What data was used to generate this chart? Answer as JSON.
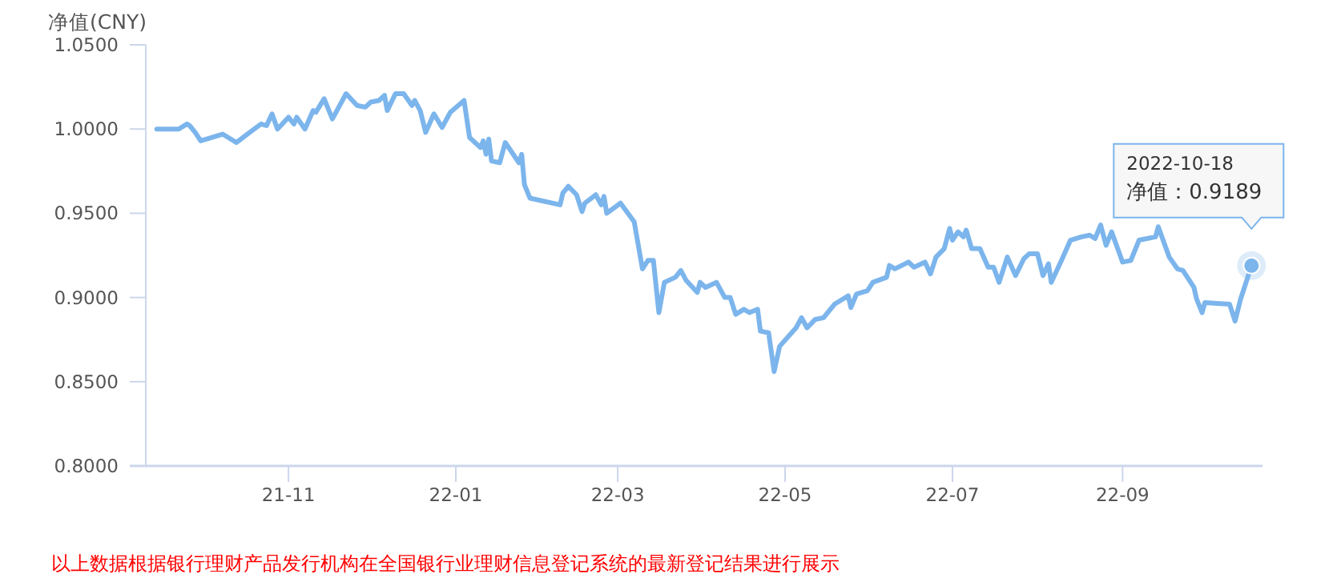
{
  "chart_data": {
    "type": "line",
    "ylabel": "净值(CNY)",
    "xlim": [
      "2021-09-10",
      "2022-10-22"
    ],
    "xticks": [
      {
        "value": "2021-11-01",
        "label": "21-11"
      },
      {
        "value": "2022-01-01",
        "label": "22-01"
      },
      {
        "value": "2022-03-01",
        "label": "22-03"
      },
      {
        "value": "2022-05-01",
        "label": "22-05"
      },
      {
        "value": "2022-07-01",
        "label": "22-07"
      },
      {
        "value": "2022-09-01",
        "label": "22-09"
      }
    ],
    "ylim": [
      0.8,
      1.05
    ],
    "yticks": [
      {
        "value": 0.8,
        "label": "0.8000"
      },
      {
        "value": 0.85,
        "label": "0.8500"
      },
      {
        "value": 0.9,
        "label": "0.9000"
      },
      {
        "value": 0.95,
        "label": "0.9500"
      },
      {
        "value": 1.0,
        "label": "1.0000"
      },
      {
        "value": 1.05,
        "label": "1.0500"
      }
    ],
    "grid": false,
    "marker": "none",
    "line_style": "solid",
    "series": [
      {
        "color": "#7cb5ec",
        "x": [
          "2021-09-14",
          "2021-09-22",
          "2021-09-25",
          "2021-09-26",
          "2021-09-28",
          "2021-09-30",
          "2021-10-08",
          "2021-10-13",
          "2021-10-17",
          "2021-10-22",
          "2021-10-24",
          "2021-10-26",
          "2021-10-28",
          "2021-11-01",
          "2021-11-03",
          "2021-11-04",
          "2021-11-07",
          "2021-11-10",
          "2021-11-11",
          "2021-11-14",
          "2021-11-17",
          "2021-11-22",
          "2021-11-26",
          "2021-11-29",
          "2021-12-01",
          "2021-12-04",
          "2021-12-06",
          "2021-12-07",
          "2021-12-10",
          "2021-12-13",
          "2021-12-16",
          "2021-12-17",
          "2021-12-19",
          "2021-12-21",
          "2021-12-24",
          "2021-12-27",
          "2021-12-29",
          "2021-12-30",
          "2022-01-04",
          "2022-01-06",
          "2022-01-10",
          "2022-01-11",
          "2022-01-12",
          "2022-01-13",
          "2022-01-14",
          "2022-01-17",
          "2022-01-19",
          "2022-01-24",
          "2022-01-25",
          "2022-01-26",
          "2022-01-28",
          "2022-02-08",
          "2022-02-09",
          "2022-02-11",
          "2022-02-14",
          "2022-02-16",
          "2022-02-17",
          "2022-02-21",
          "2022-02-23",
          "2022-02-24",
          "2022-02-25",
          "2022-03-02",
          "2022-03-07",
          "2022-03-10",
          "2022-03-12",
          "2022-03-14",
          "2022-03-16",
          "2022-03-18",
          "2022-03-22",
          "2022-03-24",
          "2022-03-26",
          "2022-03-30",
          "2022-03-31",
          "2022-04-02",
          "2022-04-06",
          "2022-04-09",
          "2022-04-11",
          "2022-04-13",
          "2022-04-16",
          "2022-04-18",
          "2022-04-21",
          "2022-04-22",
          "2022-04-25",
          "2022-04-27",
          "2022-04-29",
          "2022-05-05",
          "2022-05-07",
          "2022-05-09",
          "2022-05-12",
          "2022-05-15",
          "2022-05-19",
          "2022-05-24",
          "2022-05-25",
          "2022-05-27",
          "2022-05-31",
          "2022-06-02",
          "2022-06-07",
          "2022-06-08",
          "2022-06-10",
          "2022-06-15",
          "2022-06-17",
          "2022-06-21",
          "2022-06-23",
          "2022-06-25",
          "2022-06-28",
          "2022-06-30",
          "2022-07-01",
          "2022-07-03",
          "2022-07-05",
          "2022-07-06",
          "2022-07-08",
          "2022-07-11",
          "2022-07-14",
          "2022-07-16",
          "2022-07-18",
          "2022-07-21",
          "2022-07-24",
          "2022-07-27",
          "2022-07-29",
          "2022-08-01",
          "2022-08-03",
          "2022-08-05",
          "2022-08-06",
          "2022-08-10",
          "2022-08-13",
          "2022-08-17",
          "2022-08-20",
          "2022-08-22",
          "2022-08-24",
          "2022-08-26",
          "2022-08-28",
          "2022-09-01",
          "2022-09-04",
          "2022-09-07",
          "2022-09-13",
          "2022-09-14",
          "2022-09-18",
          "2022-09-21",
          "2022-09-23",
          "2022-09-27",
          "2022-09-28",
          "2022-09-30",
          "2022-10-01",
          "2022-10-10",
          "2022-10-12",
          "2022-10-14",
          "2022-10-18"
        ],
        "values": [
          1.0,
          1.0,
          1.003,
          1.002,
          0.998,
          0.993,
          0.997,
          0.992,
          0.997,
          1.003,
          1.002,
          1.009,
          1.0,
          1.007,
          1.003,
          1.007,
          1.0,
          1.011,
          1.01,
          1.018,
          1.006,
          1.021,
          1.014,
          1.013,
          1.016,
          1.017,
          1.02,
          1.011,
          1.021,
          1.021,
          1.014,
          1.017,
          1.011,
          0.998,
          1.009,
          1.001,
          1.007,
          1.01,
          1.017,
          0.995,
          0.989,
          0.993,
          0.985,
          0.994,
          0.981,
          0.98,
          0.992,
          0.98,
          0.985,
          0.967,
          0.959,
          0.955,
          0.962,
          0.966,
          0.961,
          0.951,
          0.956,
          0.961,
          0.955,
          0.96,
          0.95,
          0.956,
          0.945,
          0.917,
          0.922,
          0.922,
          0.891,
          0.909,
          0.912,
          0.916,
          0.91,
          0.903,
          0.909,
          0.906,
          0.909,
          0.9,
          0.9,
          0.89,
          0.893,
          0.891,
          0.893,
          0.88,
          0.879,
          0.856,
          0.871,
          0.882,
          0.888,
          0.882,
          0.887,
          0.888,
          0.896,
          0.901,
          0.894,
          0.902,
          0.904,
          0.909,
          0.912,
          0.919,
          0.917,
          0.921,
          0.918,
          0.921,
          0.914,
          0.924,
          0.929,
          0.941,
          0.934,
          0.939,
          0.936,
          0.94,
          0.929,
          0.929,
          0.918,
          0.918,
          0.909,
          0.924,
          0.913,
          0.923,
          0.926,
          0.926,
          0.913,
          0.92,
          0.909,
          0.923,
          0.934,
          0.936,
          0.937,
          0.935,
          0.943,
          0.931,
          0.939,
          0.921,
          0.922,
          0.934,
          0.936,
          0.942,
          0.924,
          0.917,
          0.916,
          0.906,
          0.899,
          0.891,
          0.897,
          0.896,
          0.886,
          0.899,
          0.9189
        ]
      }
    ],
    "annotations": [
      {
        "text": "2022-10-18\n净值：0.9189",
        "x": "2022-10-18",
        "y": 0.9189
      },
      "以上数据根据银行理财产品发行机构在全国银行业理财信息登记系统的最新登记结果进行展示"
    ]
  }
}
